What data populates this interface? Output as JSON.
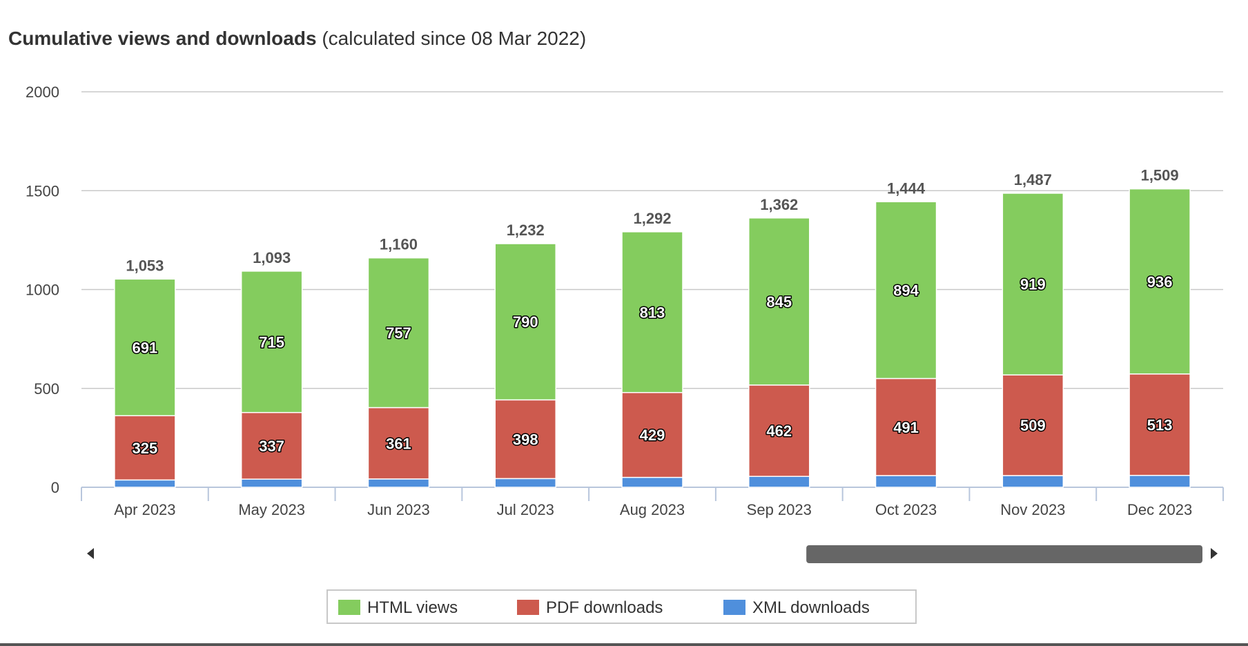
{
  "header": {
    "title": "Cumulative views and downloads",
    "subtitle": "(calculated since 08 Mar 2022)"
  },
  "chart_data": {
    "type": "bar",
    "stacked": true,
    "categories": [
      "Apr 2023",
      "May 2023",
      "Jun 2023",
      "Jul 2023",
      "Aug 2023",
      "Sep 2023",
      "Oct 2023",
      "Nov 2023",
      "Dec 2023"
    ],
    "series": [
      {
        "name": "XML downloads",
        "color": "#4f8fdc",
        "values": [
          37,
          41,
          42,
          44,
          50,
          55,
          59,
          59,
          60
        ]
      },
      {
        "name": "PDF downloads",
        "color": "#cd5a4e",
        "values": [
          325,
          337,
          361,
          398,
          429,
          462,
          491,
          509,
          513
        ]
      },
      {
        "name": "HTML views",
        "color": "#84cc5e",
        "values": [
          691,
          715,
          757,
          790,
          813,
          845,
          894,
          919,
          936
        ]
      }
    ],
    "totals": [
      "1,053",
      "1,093",
      "1,160",
      "1,232",
      "1,292",
      "1,362",
      "1,444",
      "1,487",
      "1,509"
    ],
    "y_ticks": [
      0,
      500,
      1000,
      1500,
      2000
    ],
    "ylim": [
      0,
      2000
    ],
    "grid": true,
    "legend": {
      "placement": "bottom-center",
      "items": [
        "HTML views",
        "PDF downloads",
        "XML downloads"
      ]
    },
    "scrollbar": {
      "visible": true,
      "thumb_start_fraction": 0.64,
      "thumb_end_fraction": 1.0
    }
  }
}
